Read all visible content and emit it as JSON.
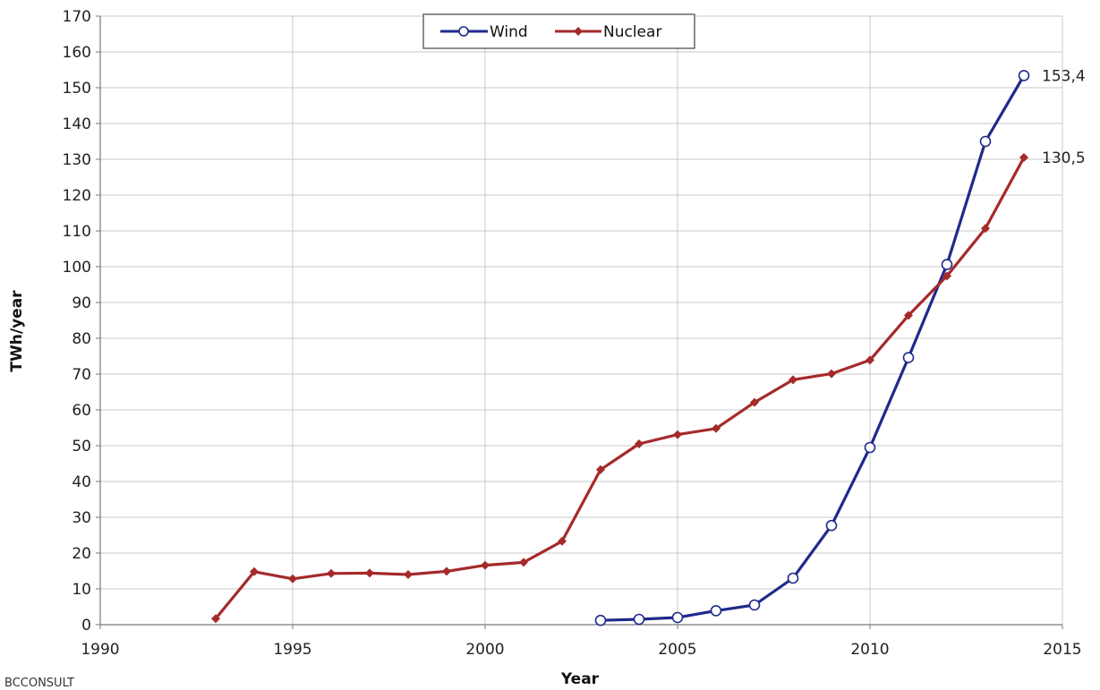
{
  "chart_data": {
    "type": "line",
    "title": "",
    "xlabel": "Year",
    "ylabel": "TWh/year",
    "xlim": [
      1990,
      2015
    ],
    "ylim": [
      0,
      170
    ],
    "xticks": [
      1990,
      1995,
      2000,
      2005,
      2010,
      2015
    ],
    "yticks": [
      0,
      10,
      20,
      30,
      40,
      50,
      60,
      70,
      80,
      90,
      100,
      110,
      120,
      130,
      140,
      150,
      160,
      170
    ],
    "grid": true,
    "legend_position": "top-center",
    "series": [
      {
        "name": "Wind",
        "color": "#1f2a8c",
        "marker": "open-circle",
        "x": [
          2003,
          2004,
          2005,
          2006,
          2007,
          2008,
          2009,
          2010,
          2011,
          2012,
          2013,
          2014
        ],
        "values": [
          1.2,
          1.5,
          2.0,
          3.9,
          5.5,
          13.0,
          27.7,
          49.5,
          74.6,
          100.6,
          135.0,
          153.4
        ],
        "end_label": "153,4"
      },
      {
        "name": "Nuclear",
        "color": "#a52a2a",
        "marker": "diamond",
        "x": [
          1993,
          1994,
          1995,
          1996,
          1997,
          1998,
          1999,
          2000,
          2001,
          2002,
          2003,
          2004,
          2005,
          2006,
          2007,
          2008,
          2009,
          2010,
          2011,
          2012,
          2013,
          2014
        ],
        "values": [
          1.7,
          14.8,
          12.8,
          14.3,
          14.4,
          14.0,
          14.9,
          16.6,
          17.4,
          23.3,
          43.3,
          50.5,
          53.1,
          54.8,
          62.1,
          68.4,
          70.1,
          73.9,
          86.4,
          97.4,
          110.7,
          130.5
        ],
        "end_label": "130,5"
      }
    ]
  },
  "watermark": "BCCONSULT"
}
